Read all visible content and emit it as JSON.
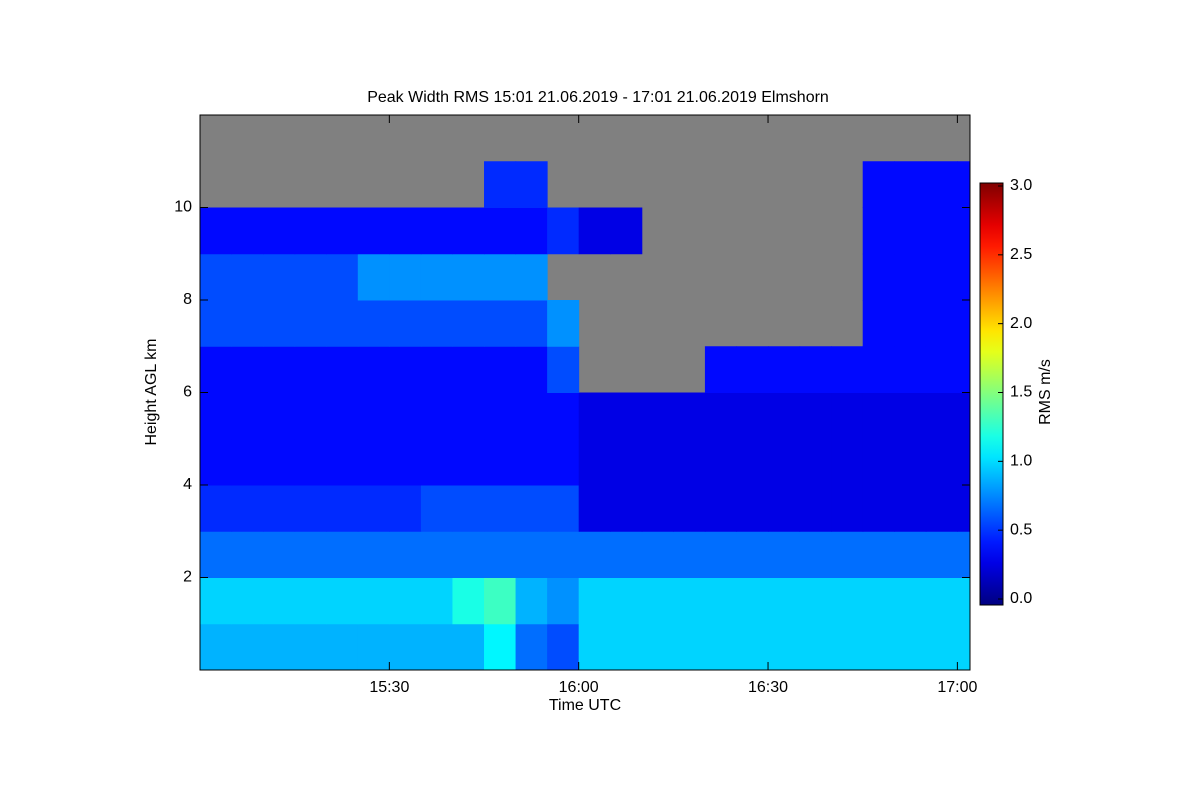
{
  "chart_data": {
    "type": "heatmap",
    "title": "Peak Width RMS   15:01 21.06.2019 - 17:01 21.06.2019 Elmshorn",
    "xlabel": "Time UTC",
    "ylabel": "Height AGL km",
    "colorbar_label": "RMS m/s",
    "colormap": "jet",
    "missing_color": "#808080",
    "xlim": [
      900,
      1022
    ],
    "xticks": [
      {
        "value": 930,
        "label": "15:30"
      },
      {
        "value": 960,
        "label": "16:00"
      },
      {
        "value": 990,
        "label": "16:30"
      },
      {
        "value": 1020,
        "label": "17:00"
      }
    ],
    "ylim": [
      0,
      12
    ],
    "yticks": [
      2,
      4,
      6,
      8,
      10
    ],
    "zlim": [
      0,
      3
    ],
    "zticks": [
      {
        "value": 0,
        "label": "0.0"
      },
      {
        "value": 0.5,
        "label": "0.5"
      },
      {
        "value": 1,
        "label": "1.0"
      },
      {
        "value": 1.5,
        "label": "1.5"
      },
      {
        "value": 2,
        "label": "2.0"
      },
      {
        "value": 2.5,
        "label": "2.5"
      },
      {
        "value": 3,
        "label": "3.0"
      }
    ],
    "x_bins": [
      900,
      905,
      910,
      915,
      920,
      925,
      930,
      935,
      940,
      945,
      950,
      955,
      960,
      965,
      970,
      975,
      980,
      985,
      990,
      995,
      1000,
      1005,
      1010,
      1015,
      1020,
      1022
    ],
    "y_bins": [
      0,
      1,
      2,
      3,
      4,
      5,
      6,
      7,
      8,
      9,
      10,
      11,
      12
    ],
    "z": [
      [
        0.9,
        0.9,
        0.9,
        0.9,
        0.9,
        0.9,
        0.9,
        0.9,
        0.9,
        1.1,
        0.7,
        0.6,
        1.0,
        1.0,
        1.0,
        1.0,
        1.0,
        1.0,
        1.0,
        1.0,
        1.0,
        1.0,
        1.0,
        1.0,
        1.0
      ],
      [
        1.0,
        1.0,
        1.0,
        1.0,
        1.0,
        1.0,
        1.0,
        1.0,
        1.2,
        1.3,
        0.9,
        0.8,
        1.0,
        1.0,
        1.0,
        1.0,
        1.0,
        1.0,
        1.0,
        1.0,
        1.0,
        1.0,
        1.0,
        1.0,
        1.0
      ],
      [
        0.7,
        0.7,
        0.7,
        0.7,
        0.7,
        0.7,
        0.7,
        0.7,
        0.7,
        0.7,
        0.7,
        0.7,
        0.7,
        0.7,
        0.7,
        0.7,
        0.7,
        0.7,
        0.7,
        0.7,
        0.7,
        0.7,
        0.7,
        0.7,
        0.7
      ],
      [
        0.5,
        0.5,
        0.5,
        0.5,
        0.5,
        0.5,
        0.5,
        0.6,
        0.6,
        0.6,
        0.6,
        0.6,
        0.3,
        0.3,
        0.3,
        0.3,
        0.3,
        0.3,
        0.3,
        0.3,
        0.3,
        0.3,
        0.3,
        0.3,
        0.3
      ],
      [
        0.4,
        0.4,
        0.4,
        0.4,
        0.4,
        0.4,
        0.4,
        0.4,
        0.4,
        0.4,
        0.4,
        0.4,
        0.3,
        0.3,
        0.3,
        0.3,
        0.3,
        0.3,
        0.3,
        0.3,
        0.3,
        0.3,
        0.3,
        0.3,
        0.3
      ],
      [
        0.4,
        0.4,
        0.4,
        0.4,
        0.4,
        0.4,
        0.4,
        0.4,
        0.4,
        0.4,
        0.4,
        0.4,
        0.3,
        0.3,
        0.3,
        0.3,
        0.3,
        0.3,
        0.3,
        0.3,
        0.3,
        0.3,
        0.3,
        0.3,
        0.3
      ],
      [
        0.4,
        0.4,
        0.4,
        0.4,
        0.4,
        0.4,
        0.4,
        0.4,
        0.4,
        0.4,
        0.4,
        0.6,
        null,
        null,
        null,
        null,
        0.4,
        0.4,
        0.4,
        0.4,
        0.4,
        0.4,
        0.4,
        0.4,
        0.4
      ],
      [
        0.6,
        0.6,
        0.6,
        0.6,
        0.6,
        0.6,
        0.6,
        0.6,
        0.6,
        0.6,
        0.6,
        0.8,
        null,
        null,
        null,
        null,
        null,
        null,
        null,
        null,
        null,
        0.4,
        0.4,
        0.4,
        0.4
      ],
      [
        0.6,
        0.6,
        0.6,
        0.6,
        0.6,
        0.8,
        0.8,
        0.8,
        0.8,
        0.8,
        0.8,
        null,
        null,
        null,
        null,
        null,
        null,
        null,
        null,
        null,
        null,
        0.4,
        0.4,
        0.4,
        0.4
      ],
      [
        0.4,
        0.4,
        0.4,
        0.4,
        0.4,
        0.4,
        0.4,
        0.4,
        0.4,
        0.4,
        0.4,
        0.5,
        0.3,
        0.3,
        null,
        null,
        null,
        null,
        null,
        null,
        null,
        0.4,
        0.4,
        0.4,
        0.4
      ],
      [
        null,
        null,
        null,
        null,
        null,
        null,
        null,
        null,
        null,
        0.5,
        0.5,
        null,
        null,
        null,
        null,
        null,
        null,
        null,
        null,
        null,
        null,
        0.4,
        0.4,
        0.4,
        0.4
      ],
      [
        null,
        null,
        null,
        null,
        null,
        null,
        null,
        null,
        null,
        null,
        null,
        null,
        null,
        null,
        null,
        null,
        null,
        null,
        null,
        null,
        null,
        null,
        null,
        null,
        null
      ]
    ]
  }
}
